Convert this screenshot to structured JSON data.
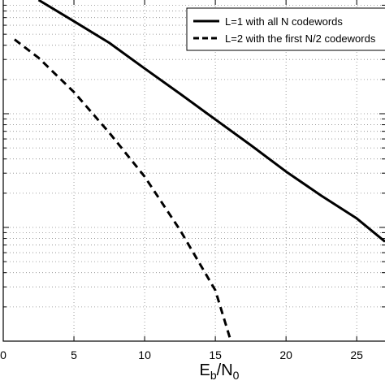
{
  "chart_data": {
    "type": "line",
    "xlabel": "E_b/N_0",
    "xlabel_main": "E",
    "xlabel_sub1": "b",
    "xlabel_mid": "/N",
    "xlabel_sub2": "0",
    "xlim": [
      0,
      27
    ],
    "x_ticks": [
      0,
      5,
      10,
      15,
      20,
      25
    ],
    "x_tick_labels": [
      "0",
      "5",
      "10",
      "15",
      "20",
      "25"
    ],
    "y_scale": "log",
    "ylim": [
      0.0001,
      0.1
    ],
    "grid": true,
    "legend_position": "top-right",
    "series": [
      {
        "name": "L=1 with all N codewords",
        "style": "solid",
        "color": "#000000",
        "x": [
          2.5,
          5,
          7.5,
          10,
          12.5,
          15,
          17.5,
          20,
          22.5,
          25,
          27
        ],
        "y": [
          0.1,
          0.065,
          0.042,
          0.025,
          0.015,
          0.0089,
          0.0053,
          0.0031,
          0.0019,
          0.0012,
          0.00075
        ]
      },
      {
        "name": "L=2 with the first N/2 codewords",
        "style": "dashed",
        "color": "#000000",
        "x": [
          0.8,
          2.5,
          5,
          7.5,
          10,
          12.5,
          15,
          16.1
        ],
        "y": [
          0.045,
          0.031,
          0.0155,
          0.0068,
          0.0028,
          0.00095,
          0.00028,
          0.0001
        ]
      }
    ]
  }
}
